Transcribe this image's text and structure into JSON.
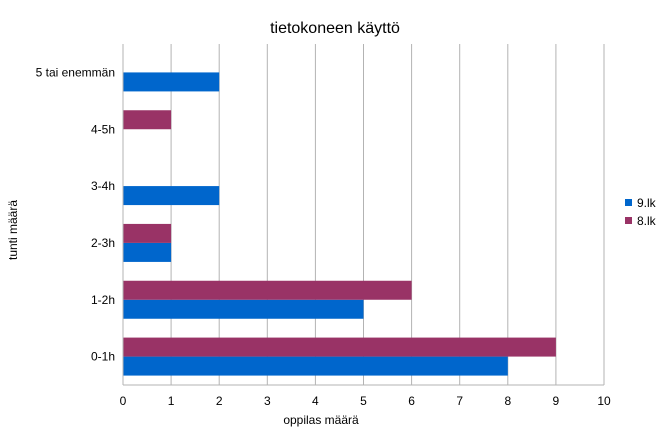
{
  "chart_data": {
    "type": "bar",
    "orientation": "horizontal",
    "title": "tietokoneen käyttö",
    "xlabel": "oppilas määrä",
    "ylabel": "tunti määrä",
    "xlim": [
      0,
      10
    ],
    "x_ticks": [
      "0",
      "1",
      "2",
      "3",
      "4",
      "5",
      "6",
      "7",
      "8",
      "9",
      "10"
    ],
    "categories": [
      "0-1h",
      "1-2h",
      "2-3h",
      "3-4h",
      "4-5h",
      "5 tai enemmän"
    ],
    "series": [
      {
        "name": "9.lk",
        "color": "#0066cc",
        "values": [
          8,
          5,
          1,
          2,
          0,
          2
        ]
      },
      {
        "name": "8.lk",
        "color": "#993366",
        "values": [
          9,
          6,
          1,
          0,
          1,
          0
        ]
      }
    ],
    "grid": "vertical",
    "legend_position": "right"
  }
}
